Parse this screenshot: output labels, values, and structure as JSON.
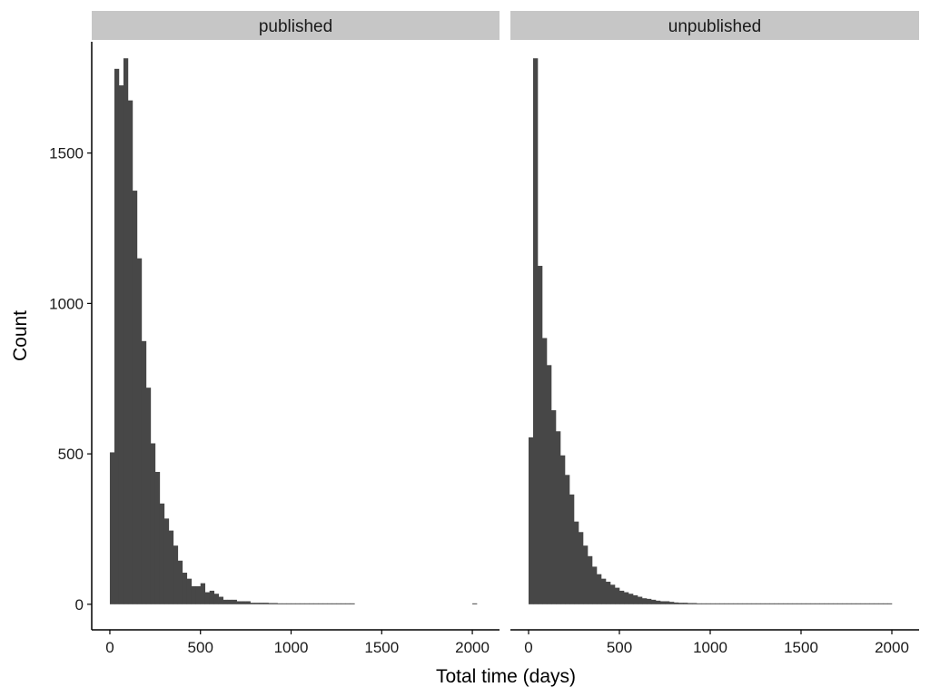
{
  "chart_data": {
    "type": "bar",
    "xlabel": "Total time (days)",
    "ylabel": "Count",
    "xlim": [
      -100,
      2150
    ],
    "ylim": [
      -85,
      1870
    ],
    "xticks": [
      0,
      500,
      1000,
      1500,
      2000
    ],
    "yticks": [
      0,
      500,
      1000,
      1500
    ],
    "bin_width": 25,
    "bin_start": 0,
    "grid": false,
    "colors": {
      "bar": "#474747",
      "strip": "#c6c6c6",
      "axis": "#000000"
    },
    "panels": [
      {
        "label": "published",
        "counts": [
          505,
          1780,
          1725,
          1815,
          1675,
          1375,
          1150,
          875,
          720,
          535,
          440,
          335,
          285,
          245,
          195,
          145,
          105,
          85,
          60,
          60,
          70,
          40,
          45,
          35,
          25,
          15,
          15,
          15,
          10,
          10,
          10,
          5,
          5,
          5,
          5,
          4,
          4,
          3,
          3,
          2,
          2,
          2,
          2,
          2,
          1,
          1,
          1,
          1,
          1,
          1,
          1,
          1,
          1,
          1,
          0,
          0,
          0,
          0,
          0,
          0,
          0,
          0,
          0,
          0,
          0,
          0,
          0,
          0,
          0,
          0,
          0,
          0,
          0,
          0,
          0,
          0,
          0,
          0,
          0,
          0,
          1
        ]
      },
      {
        "label": "unpublished",
        "counts": [
          555,
          1815,
          1125,
          885,
          795,
          645,
          575,
          495,
          430,
          365,
          275,
          240,
          195,
          160,
          125,
          100,
          85,
          75,
          65,
          55,
          45,
          40,
          35,
          30,
          25,
          20,
          18,
          15,
          12,
          10,
          10,
          8,
          6,
          5,
          5,
          4,
          4,
          3,
          3,
          3,
          2,
          2,
          2,
          2,
          1,
          1,
          1,
          1,
          1,
          1,
          1,
          1,
          1,
          1,
          1,
          1,
          1,
          1,
          1,
          1,
          1,
          1,
          1,
          1,
          1,
          1,
          1,
          1,
          1,
          1,
          1,
          1,
          1,
          1,
          1,
          1,
          1,
          1,
          1,
          1
        ]
      }
    ]
  }
}
